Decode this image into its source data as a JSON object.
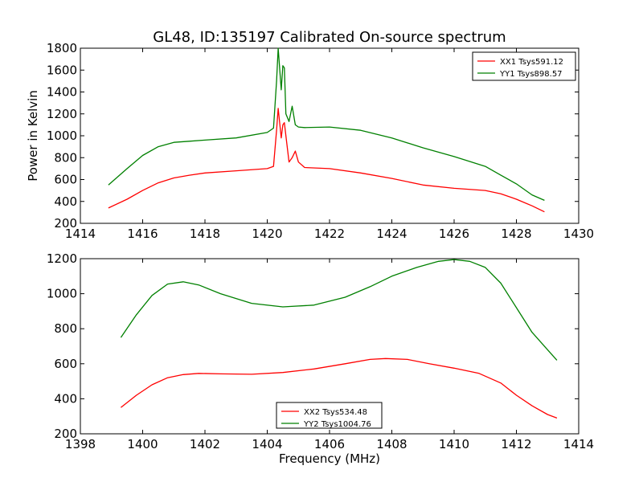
{
  "chart_data": [
    {
      "type": "line",
      "title": "GL48, ID:135197 Calibrated On-source spectrum",
      "xlabel": "",
      "ylabel": "Power in Kelvin",
      "xlim": [
        1414,
        1430
      ],
      "ylim": [
        200,
        1800
      ],
      "xticks": [
        1414,
        1416,
        1418,
        1420,
        1422,
        1424,
        1426,
        1428,
        1430
      ],
      "yticks": [
        200,
        400,
        600,
        800,
        1000,
        1200,
        1400,
        1600,
        1800
      ],
      "legend_position": "top-right",
      "series": [
        {
          "name": "XX1 Tsys591.12",
          "color": "#ff0000",
          "x": [
            1414.9,
            1415.5,
            1416.0,
            1416.5,
            1417.0,
            1417.5,
            1418.0,
            1419.0,
            1420.0,
            1420.2,
            1420.3,
            1420.35,
            1420.45,
            1420.5,
            1420.55,
            1420.6,
            1420.7,
            1420.8,
            1420.9,
            1421.0,
            1421.2,
            1422.0,
            1423.0,
            1424.0,
            1425.0,
            1426.0,
            1427.0,
            1427.5,
            1428.0,
            1428.5,
            1428.9
          ],
          "y": [
            340,
            420,
            500,
            570,
            615,
            640,
            660,
            680,
            700,
            720,
            1050,
            1250,
            980,
            1100,
            1120,
            1000,
            760,
            800,
            860,
            760,
            710,
            700,
            660,
            610,
            550,
            520,
            500,
            470,
            420,
            360,
            305
          ]
        },
        {
          "name": "YY1 Tsys898.57",
          "color": "#008000",
          "x": [
            1414.9,
            1415.5,
            1416.0,
            1416.5,
            1417.0,
            1417.5,
            1418.0,
            1419.0,
            1420.0,
            1420.2,
            1420.3,
            1420.35,
            1420.45,
            1420.5,
            1420.55,
            1420.6,
            1420.7,
            1420.8,
            1420.9,
            1421.0,
            1421.2,
            1422.0,
            1423.0,
            1424.0,
            1425.0,
            1426.0,
            1427.0,
            1427.5,
            1428.0,
            1428.5,
            1428.9
          ],
          "y": [
            550,
            700,
            820,
            900,
            940,
            950,
            960,
            980,
            1030,
            1070,
            1500,
            1800,
            1420,
            1640,
            1620,
            1200,
            1130,
            1270,
            1100,
            1080,
            1075,
            1080,
            1050,
            980,
            890,
            810,
            720,
            640,
            560,
            460,
            410
          ]
        }
      ]
    },
    {
      "type": "line",
      "title": "",
      "xlabel": "Frequency (MHz)",
      "ylabel": "",
      "xlim": [
        1398,
        1414
      ],
      "ylim": [
        200,
        1200
      ],
      "xticks": [
        1398,
        1400,
        1402,
        1404,
        1406,
        1408,
        1410,
        1412,
        1414
      ],
      "yticks": [
        200,
        400,
        600,
        800,
        1000,
        1200
      ],
      "legend_position": "bottom-center",
      "series": [
        {
          "name": "XX2 Tsys534.48",
          "color": "#ff0000",
          "x": [
            1399.3,
            1399.8,
            1400.3,
            1400.8,
            1401.3,
            1401.8,
            1402.5,
            1403.5,
            1404.5,
            1405.5,
            1406.5,
            1407.3,
            1407.8,
            1408.5,
            1409.2,
            1410.0,
            1410.8,
            1411.5,
            1412.0,
            1412.5,
            1413.0,
            1413.3
          ],
          "y": [
            350,
            420,
            480,
            520,
            538,
            545,
            542,
            540,
            550,
            570,
            600,
            625,
            630,
            625,
            600,
            575,
            545,
            490,
            420,
            360,
            310,
            290
          ]
        },
        {
          "name": "YY2 Tsys1004.76",
          "color": "#008000",
          "x": [
            1399.3,
            1399.8,
            1400.3,
            1400.8,
            1401.3,
            1401.8,
            1402.5,
            1403.5,
            1404.5,
            1405.5,
            1406.5,
            1407.3,
            1408.0,
            1408.8,
            1409.5,
            1410.0,
            1410.5,
            1411.0,
            1411.5,
            1412.0,
            1412.5,
            1413.0,
            1413.3
          ],
          "y": [
            750,
            880,
            990,
            1055,
            1068,
            1050,
            1000,
            945,
            925,
            935,
            980,
            1040,
            1100,
            1150,
            1185,
            1195,
            1185,
            1150,
            1060,
            920,
            780,
            680,
            620
          ]
        }
      ]
    }
  ]
}
